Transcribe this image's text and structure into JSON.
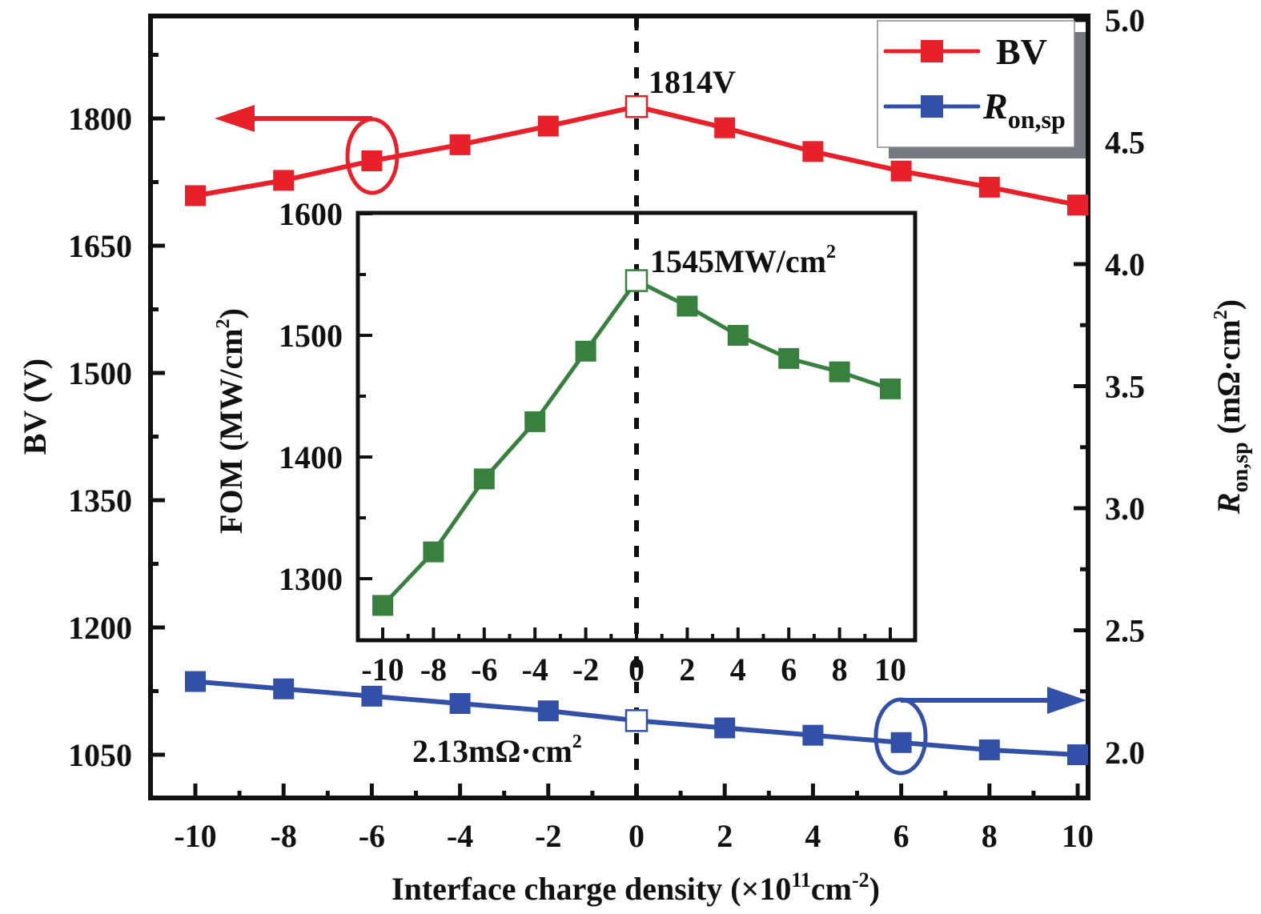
{
  "chart_data": {
    "type": "line",
    "x": [
      -10,
      -8,
      -6,
      -4,
      -2,
      0,
      2,
      4,
      6,
      8,
      10
    ],
    "xlabel": "Interface charge density (×10¹¹cm⁻²)",
    "xlabel_parts": {
      "main": "Interface charge density (×10",
      "sup1": "11",
      "mid": "cm",
      "sup2": "-2",
      "end": ")"
    },
    "xlim": [
      -11,
      11
    ],
    "x_ticks": [
      "-10",
      "-8",
      "-6",
      "-4",
      "-2",
      "0",
      "2",
      "4",
      "6",
      "8",
      "10"
    ],
    "left_axis": {
      "label": "BV (V)",
      "ylim": [
        999,
        1921
      ],
      "ticks": [
        "1050",
        "1200",
        "1350",
        "1500",
        "1650",
        "1800"
      ],
      "tick_values": [
        1050,
        1200,
        1350,
        1500,
        1650,
        1800
      ]
    },
    "right_axis": {
      "label_main": "R",
      "label_sub": "on,sp",
      "label_unit": " (mΩ·cm",
      "label_sup": "2",
      "label_end": ")",
      "ylim": [
        1.86,
        5.02
      ],
      "ticks": [
        "2.0",
        "2.5",
        "3.0",
        "3.5",
        "4.0",
        "4.5",
        "5.0"
      ],
      "tick_values": [
        2.0,
        2.5,
        3.0,
        3.5,
        4.0,
        4.5,
        5.0
      ]
    },
    "series": [
      {
        "name": "BV",
        "axis": "left",
        "color": "#e8202a",
        "values": [
          1709,
          1727,
          1750,
          1769,
          1791,
          1814,
          1789,
          1761,
          1738,
          1719,
          1698
        ],
        "highlight_index": 5
      },
      {
        "name": "Ron,sp",
        "axis": "right",
        "color": "#3350a8",
        "values": [
          2.29,
          2.26,
          2.23,
          2.2,
          2.17,
          2.13,
          2.1,
          2.07,
          2.04,
          2.01,
          1.99
        ],
        "highlight_index": 5
      }
    ],
    "legend": {
      "placement": "top-right",
      "entries": [
        {
          "label": "BV",
          "color": "#e8202a"
        },
        {
          "label_main": "R",
          "label_sub": "on,sp",
          "color": "#3350a8"
        }
      ]
    },
    "annotations": {
      "bv_peak": "1814V",
      "ron_min": "2.13mΩ·cm",
      "ron_min_sup": "2",
      "fom_peak": "1545MW/cm",
      "fom_peak_sup": "2"
    },
    "inset": {
      "type": "line",
      "x": [
        -10,
        -8,
        -6,
        -4,
        -2,
        0,
        2,
        4,
        6,
        8,
        10
      ],
      "xlim": [
        -11,
        11
      ],
      "x_ticks": [
        "-10",
        "-8",
        "-6",
        "-4",
        "-2",
        "0",
        "2",
        "4",
        "6",
        "8",
        "10"
      ],
      "ylabel_main": "FOM (MW/cm",
      "ylabel_sup": "2",
      "ylabel_end": ")",
      "ylim": [
        1250,
        1600
      ],
      "y_ticks": [
        "1300",
        "1400",
        "1500",
        "1600"
      ],
      "y_tick_values": [
        1300,
        1400,
        1500,
        1600
      ],
      "series": [
        {
          "name": "FOM",
          "color": "#37803d",
          "values": [
            1278,
            1322,
            1382,
            1429,
            1487,
            1545,
            1524,
            1500,
            1481,
            1470,
            1456
          ],
          "highlight_index": 5
        }
      ]
    }
  }
}
